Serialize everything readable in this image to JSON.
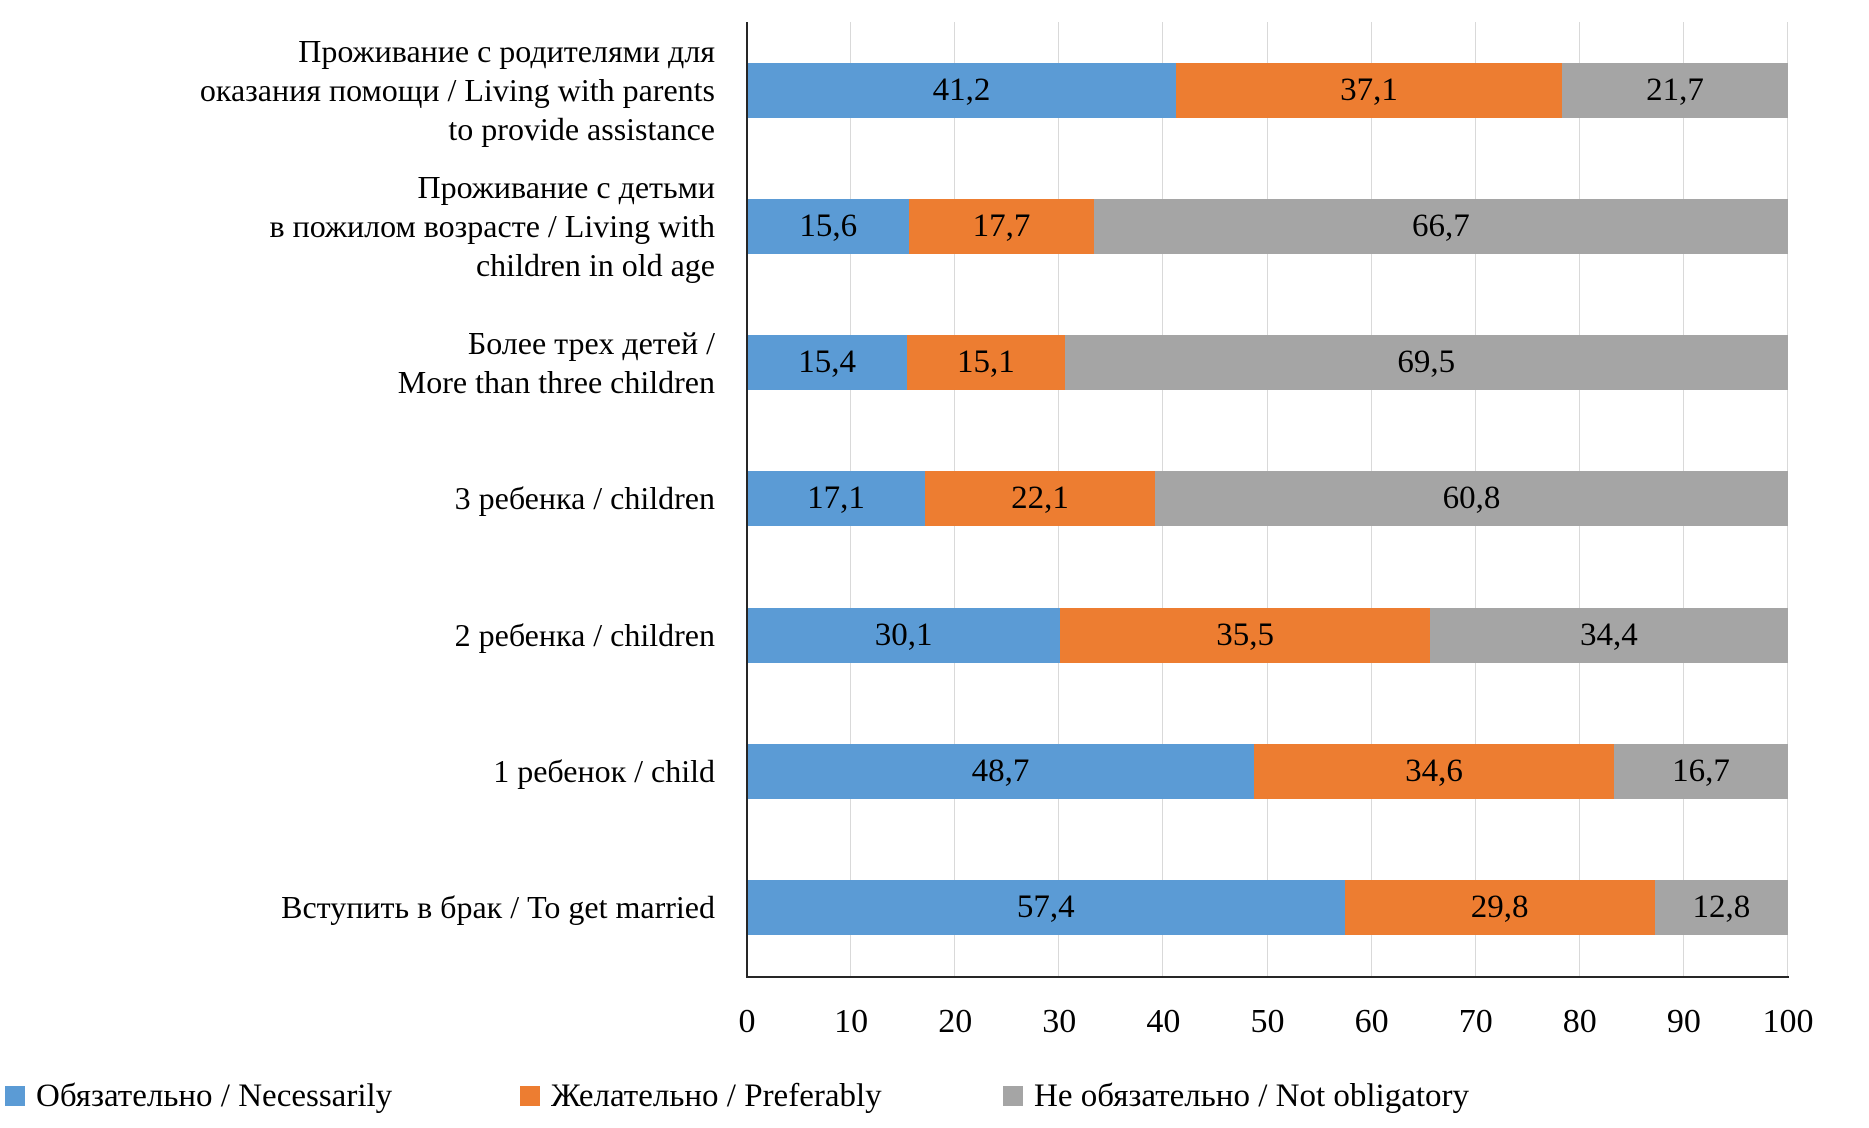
{
  "chart_data": {
    "type": "bar",
    "orientation": "horizontal",
    "stacked": true,
    "grid": true,
    "legend_position": "bottom",
    "decimal_separator": ",",
    "xlim": [
      0,
      100
    ],
    "x_ticks": [
      "0",
      "10",
      "20",
      "30",
      "40",
      "50",
      "60",
      "70",
      "80",
      "90",
      "100"
    ],
    "categories": [
      {
        "label": "Проживание с родителями для оказания помощи / Living with parents to provide assistance",
        "lines": [
          "Проживание с родителями для",
          "оказания помощи / Living with parents",
          "to provide assistance"
        ]
      },
      {
        "label": "Проживание с детьми в пожилом возрасте / Living with children in old age",
        "lines": [
          "Проживание с детьми",
          "в пожилом возрасте / Living with",
          "children in old age"
        ]
      },
      {
        "label": "Более трех детей / More than three children",
        "lines": [
          "Более трех детей  /",
          "More than three children"
        ]
      },
      {
        "label": "3 ребенка / children",
        "lines": [
          "3 ребенка / children"
        ]
      },
      {
        "label": "2 ребенка / children",
        "lines": [
          "2 ребенка / children"
        ]
      },
      {
        "label": "1 ребенок / child",
        "lines": [
          "1 ребенок / child"
        ]
      },
      {
        "label": "Вступить в брак / To get married",
        "lines": [
          "Вступить в брак / To get married"
        ]
      }
    ],
    "series": [
      {
        "name": "Обязательно / Necessarily",
        "color": "#5B9BD5",
        "values": [
          41.2,
          15.6,
          15.4,
          17.1,
          30.1,
          48.7,
          57.4
        ]
      },
      {
        "name": "Желательно / Preferably",
        "color": "#ED7D31",
        "values": [
          37.1,
          17.7,
          15.1,
          22.1,
          35.5,
          34.6,
          29.8
        ]
      },
      {
        "name": "Не обязательно / Not obligatory",
        "color": "#A5A5A5",
        "values": [
          21.7,
          66.7,
          69.5,
          60.8,
          34.4,
          16.7,
          12.8
        ]
      }
    ],
    "colors": {
      "gridline": "#D9D9D9",
      "axis": "#262626",
      "value_label": "#000000"
    }
  }
}
